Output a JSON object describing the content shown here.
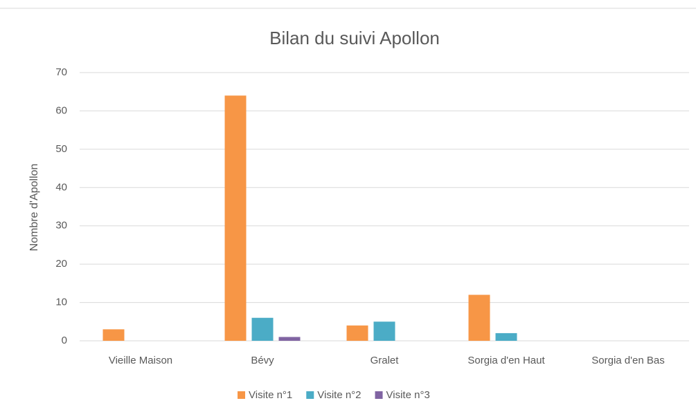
{
  "chart_data": {
    "type": "bar",
    "title": "Bilan du suivi Apollon",
    "y_label": "Nombre d'Apollon",
    "categories": [
      "Vieille Maison",
      "Bévy",
      "Gralet",
      "Sorgia d'en Haut",
      "Sorgia d'en Bas"
    ],
    "series": [
      {
        "name": "Visite n°1",
        "color": "#f79646",
        "values": [
          3,
          64,
          4,
          12,
          0
        ]
      },
      {
        "name": "Visite n°2",
        "color": "#4bacc6",
        "values": [
          0,
          6,
          5,
          2,
          0
        ]
      },
      {
        "name": "Visite n°3",
        "color": "#8064a2",
        "values": [
          0,
          1,
          0,
          0,
          0
        ]
      }
    ],
    "ylim": [
      0,
      70
    ],
    "yticks": [
      0,
      10,
      20,
      30,
      40,
      50,
      60,
      70
    ],
    "grid": true,
    "legend": "bottom"
  }
}
